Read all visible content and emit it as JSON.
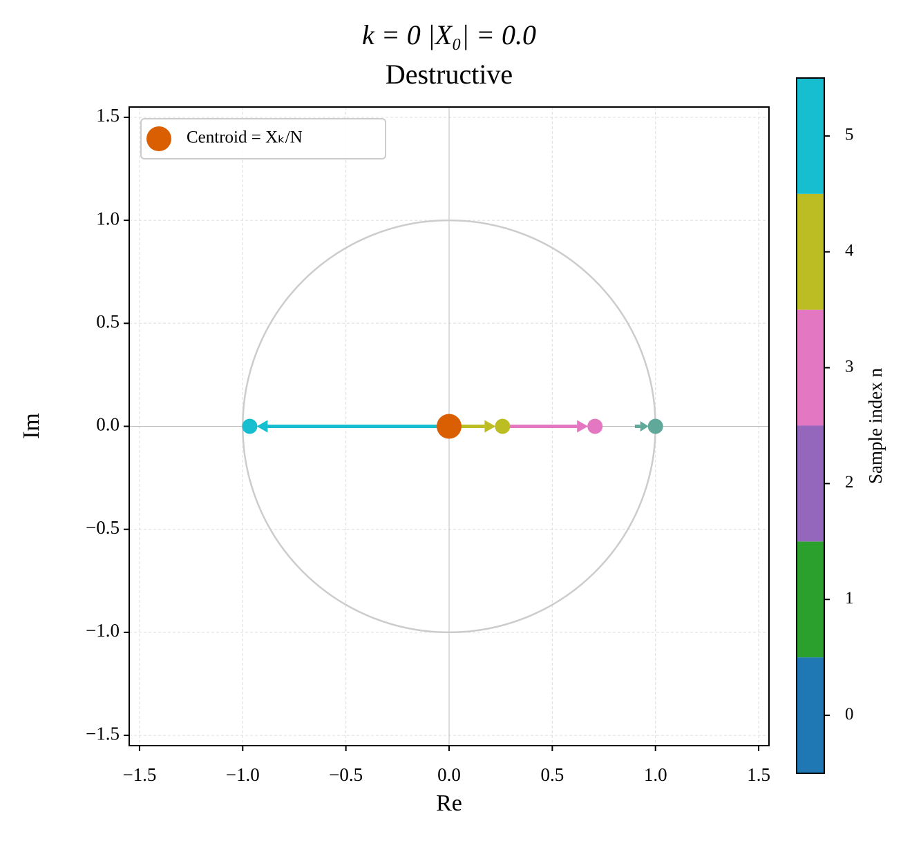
{
  "chart_data": {
    "type": "phasor",
    "title": "k = 0    |X₀| = 0.0",
    "subtitle": "Destructive",
    "title_color": "#c97eae",
    "x_label": "Re",
    "y_label": "Im",
    "xlim": [
      -1.55,
      1.55
    ],
    "ylim": [
      -1.55,
      1.55
    ],
    "xticks": [
      {
        "value": -1.5,
        "label": "−1.5"
      },
      {
        "value": -1.0,
        "label": "−1.0"
      },
      {
        "value": -0.5,
        "label": "−0.5"
      },
      {
        "value": 0,
        "label": "0.0"
      },
      0.5,
      {
        "value": 1.0,
        "label": "1.0"
      },
      1.5
    ],
    "yticks": [
      {
        "value": -1.5,
        "label": "−1.5"
      },
      {
        "value": -1.0,
        "label": "−1.0"
      },
      {
        "value": -0.5,
        "label": "−0.5"
      },
      {
        "value": 0,
        "label": "0.0"
      },
      0.5,
      {
        "value": 1.0,
        "label": "1.0"
      },
      1.5
    ],
    "grid": true,
    "circle": {
      "radius": 1,
      "color": "#cccccc"
    },
    "arrows": [
      {
        "x0": 0,
        "y0": 0,
        "x1": -0.966,
        "y1": 0,
        "color": "#17becf"
      },
      {
        "x0": 0,
        "y0": 0,
        "x1": 0.259,
        "y1": 0,
        "color": "#bcbd22"
      },
      {
        "x0": 0.259,
        "y0": 0,
        "x1": 0.707,
        "y1": 0,
        "color": "#e377c2"
      },
      {
        "x0": 0.9,
        "y0": 0,
        "x1": 1.0,
        "y1": 0,
        "color": "#5fa89a"
      }
    ],
    "points": [
      {
        "x": 1.0,
        "y": 0,
        "color": "#5fa89a"
      },
      {
        "x": 0.707,
        "y": 0,
        "color": "#e377c2"
      },
      {
        "x": 0.259,
        "y": 0,
        "color": "#bcbd22"
      },
      {
        "x": -0.966,
        "y": 0,
        "color": "#17becf"
      }
    ],
    "centroid": {
      "x": 0,
      "y": 0,
      "color": "#d95f02",
      "name": "Centroid = Xₖ/N"
    },
    "legend": "upper left",
    "colorbar": {
      "label": "Sample index n",
      "lim": [
        -0.5,
        5.5
      ],
      "ticks": [
        0,
        1,
        2,
        3,
        4,
        5
      ],
      "colors": [
        "#1f77b4",
        "#2ca02c",
        "#9467bd",
        "#e377c2",
        "#bcbd22",
        "#17becf"
      ]
    }
  }
}
